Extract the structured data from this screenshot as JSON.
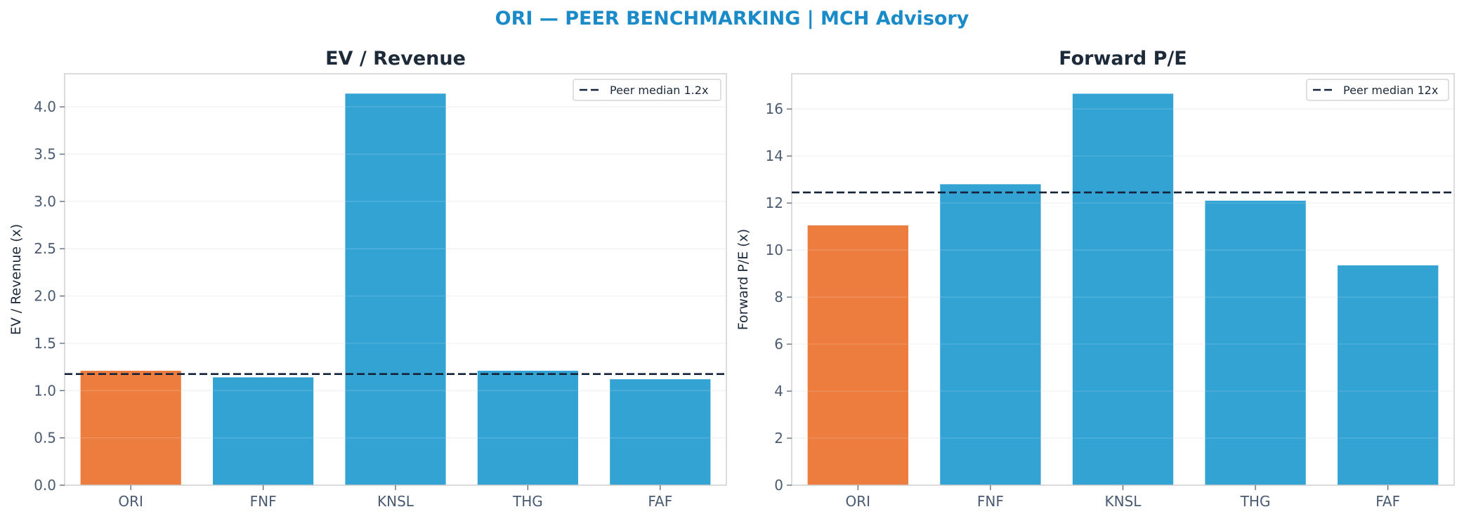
{
  "figure": {
    "suptitle": "ORI — PEER BENCHMARKING | MCH Advisory"
  },
  "colors": {
    "suptitle": "#1a8bc8",
    "focus_bar": "#ed7d3f",
    "peer_bar": "#33a3d4",
    "median_line": "#15233a",
    "axis_text": "#4a5a70",
    "title_text": "#1d2a3a",
    "spine": "#d0d0d0",
    "grid": "#eeeeee"
  },
  "chart_data": [
    {
      "type": "bar",
      "title": "EV / Revenue",
      "xlabel": "",
      "ylabel": "EV / Revenue (x)",
      "categories": [
        "ORI",
        "FNF",
        "KNSL",
        "THG",
        "FAF"
      ],
      "values": [
        1.21,
        1.14,
        4.14,
        1.21,
        1.12
      ],
      "focus_category": "ORI",
      "ylim": [
        0,
        4.35
      ],
      "yticks": [
        "0.0",
        "0.5",
        "1.0",
        "1.5",
        "2.0",
        "2.5",
        "3.0",
        "3.5",
        "4.0"
      ],
      "ytick_values": [
        0,
        0.5,
        1.0,
        1.5,
        2.0,
        2.5,
        3.0,
        3.5,
        4.0
      ],
      "reference_line": {
        "value": 1.175,
        "label": "Peer median 1.2x",
        "style": "dashed"
      },
      "legend": "top-right",
      "grid": true
    },
    {
      "type": "bar",
      "title": "Forward P/E",
      "xlabel": "",
      "ylabel": "Forward P/E (x)",
      "categories": [
        "ORI",
        "FNF",
        "KNSL",
        "THG",
        "FAF"
      ],
      "values": [
        11.05,
        12.8,
        16.65,
        12.1,
        9.35
      ],
      "focus_category": "ORI",
      "ylim": [
        0,
        17.5
      ],
      "yticks": [
        "0",
        "2",
        "4",
        "6",
        "8",
        "10",
        "12",
        "14",
        "16"
      ],
      "ytick_values": [
        0,
        2,
        4,
        6,
        8,
        10,
        12,
        14,
        16
      ],
      "reference_line": {
        "value": 12.45,
        "label": "Peer median 12x",
        "style": "dashed"
      },
      "legend": "top-right",
      "grid": true
    }
  ]
}
